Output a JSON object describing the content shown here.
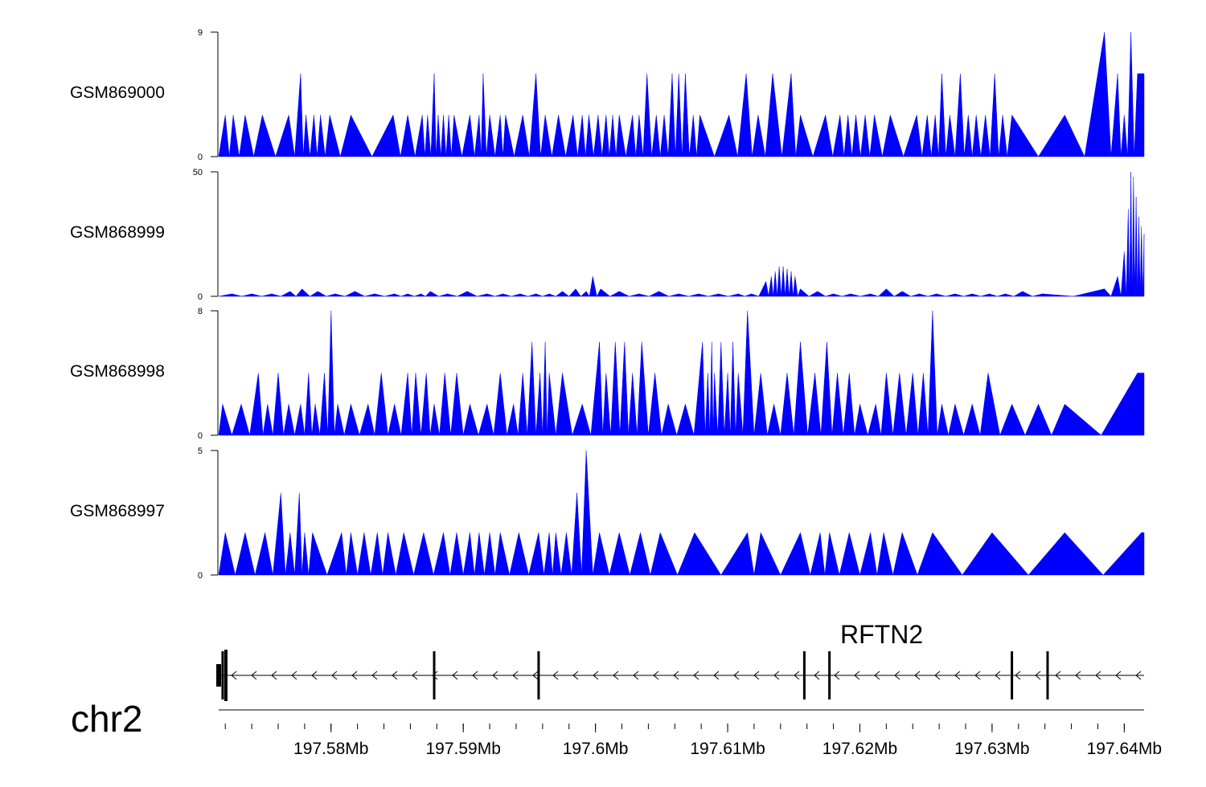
{
  "chart_data": {
    "type": "area",
    "chromosome": "chr2",
    "xlim": [
      197.5715,
      197.6415
    ],
    "xunit": "Mb",
    "xticks": [
      197.58,
      197.59,
      197.6,
      197.61,
      197.62,
      197.63,
      197.64
    ],
    "xtick_labels": [
      "197.58Mb",
      "197.59Mb",
      "197.6Mb",
      "197.61Mb",
      "197.62Mb",
      "197.63Mb",
      "197.64Mb"
    ],
    "fill_color": "#0000ff",
    "tracks": [
      {
        "name": "GSM869000",
        "ylim": [
          0,
          9
        ],
        "ytick_labels": [
          "9",
          "0"
        ],
        "peaks": [
          [
            197.572,
            3
          ],
          [
            197.5726,
            3
          ],
          [
            197.5735,
            3
          ],
          [
            197.5748,
            3
          ],
          [
            197.5768,
            3
          ],
          [
            197.5777,
            6
          ],
          [
            197.5781,
            3
          ],
          [
            197.5787,
            3
          ],
          [
            197.5792,
            3
          ],
          [
            197.5799,
            3
          ],
          [
            197.5815,
            3
          ],
          [
            197.5847,
            3
          ],
          [
            197.5858,
            3
          ],
          [
            197.5869,
            3
          ],
          [
            197.5873,
            3
          ],
          [
            197.5878,
            6
          ],
          [
            197.5881,
            3
          ],
          [
            197.5885,
            3
          ],
          [
            197.5889,
            3
          ],
          [
            197.5893,
            3
          ],
          [
            197.5905,
            3
          ],
          [
            197.5912,
            3
          ],
          [
            197.5915,
            6
          ],
          [
            197.592,
            3
          ],
          [
            197.5928,
            3
          ],
          [
            197.5932,
            3
          ],
          [
            197.5945,
            3
          ],
          [
            197.5955,
            6
          ],
          [
            197.5962,
            3
          ],
          [
            197.5972,
            3
          ],
          [
            197.5983,
            3
          ],
          [
            197.599,
            3
          ],
          [
            197.5995,
            3
          ],
          [
            197.6002,
            3
          ],
          [
            197.6008,
            3
          ],
          [
            197.6013,
            3
          ],
          [
            197.6018,
            3
          ],
          [
            197.6028,
            3
          ],
          [
            197.6033,
            3
          ],
          [
            197.6039,
            6
          ],
          [
            197.6046,
            3
          ],
          [
            197.6052,
            3
          ],
          [
            197.6058,
            6
          ],
          [
            197.6063,
            6
          ],
          [
            197.6068,
            6
          ],
          [
            197.6074,
            3
          ],
          [
            197.6079,
            3
          ],
          [
            197.6101,
            3
          ],
          [
            197.6114,
            6
          ],
          [
            197.6123,
            3
          ],
          [
            197.6134,
            6
          ],
          [
            197.6148,
            6
          ],
          [
            197.6155,
            3
          ],
          [
            197.6174,
            3
          ],
          [
            197.6185,
            3
          ],
          [
            197.6191,
            3
          ],
          [
            197.6197,
            3
          ],
          [
            197.6204,
            3
          ],
          [
            197.6211,
            3
          ],
          [
            197.6223,
            3
          ],
          [
            197.6243,
            3
          ],
          [
            197.6251,
            3
          ],
          [
            197.6257,
            3
          ],
          [
            197.6262,
            6
          ],
          [
            197.6268,
            3
          ],
          [
            197.6276,
            6
          ],
          [
            197.6282,
            3
          ],
          [
            197.6288,
            3
          ],
          [
            197.6295,
            3
          ],
          [
            197.6302,
            6
          ],
          [
            197.6308,
            3
          ],
          [
            197.6315,
            3
          ],
          [
            197.6355,
            3
          ],
          [
            197.6385,
            9
          ],
          [
            197.6395,
            6
          ],
          [
            197.64,
            3
          ],
          [
            197.6405,
            9
          ],
          [
            197.641,
            6
          ]
        ]
      },
      {
        "name": "GSM868999",
        "ylim": [
          0,
          50
        ],
        "ytick_labels": [
          "50",
          "0"
        ],
        "peaks": [
          [
            197.5725,
            1
          ],
          [
            197.574,
            1
          ],
          [
            197.5755,
            1
          ],
          [
            197.5769,
            2
          ],
          [
            197.5778,
            3
          ],
          [
            197.579,
            2
          ],
          [
            197.5803,
            1
          ],
          [
            197.5818,
            2
          ],
          [
            197.5833,
            1
          ],
          [
            197.5848,
            1
          ],
          [
            197.5858,
            1
          ],
          [
            197.5868,
            1
          ],
          [
            197.5875,
            2
          ],
          [
            197.5888,
            1
          ],
          [
            197.5903,
            2
          ],
          [
            197.5918,
            1
          ],
          [
            197.593,
            1
          ],
          [
            197.5943,
            1
          ],
          [
            197.5955,
            1
          ],
          [
            197.5965,
            1
          ],
          [
            197.5975,
            2
          ],
          [
            197.5985,
            3
          ],
          [
            197.5993,
            2
          ],
          [
            197.5998,
            8
          ],
          [
            197.6004,
            3
          ],
          [
            197.6018,
            2
          ],
          [
            197.6033,
            1
          ],
          [
            197.6048,
            2
          ],
          [
            197.6063,
            1
          ],
          [
            197.6078,
            1
          ],
          [
            197.6093,
            1
          ],
          [
            197.6108,
            1
          ],
          [
            197.6118,
            1
          ],
          [
            197.6129,
            6
          ],
          [
            197.6133,
            8
          ],
          [
            197.6136,
            10
          ],
          [
            197.6139,
            12
          ],
          [
            197.6142,
            12
          ],
          [
            197.6145,
            11
          ],
          [
            197.6148,
            10
          ],
          [
            197.6151,
            8
          ],
          [
            197.6155,
            3
          ],
          [
            197.6168,
            2
          ],
          [
            197.618,
            1
          ],
          [
            197.6193,
            1
          ],
          [
            197.6208,
            1
          ],
          [
            197.622,
            3
          ],
          [
            197.6232,
            2
          ],
          [
            197.6245,
            1
          ],
          [
            197.6258,
            1
          ],
          [
            197.6272,
            1
          ],
          [
            197.6285,
            1
          ],
          [
            197.6298,
            1
          ],
          [
            197.631,
            1
          ],
          [
            197.6323,
            2
          ],
          [
            197.6338,
            1
          ],
          [
            197.6385,
            3
          ],
          [
            197.6395,
            8
          ],
          [
            197.64,
            18
          ],
          [
            197.6403,
            35
          ],
          [
            197.6405,
            50
          ],
          [
            197.6407,
            48
          ],
          [
            197.6409,
            40
          ],
          [
            197.6411,
            32
          ],
          [
            197.6413,
            28
          ],
          [
            197.6415,
            25
          ]
        ]
      },
      {
        "name": "GSM868998",
        "ylim": [
          0,
          8
        ],
        "ytick_labels": [
          "8",
          "0"
        ],
        "peaks": [
          [
            197.5718,
            2
          ],
          [
            197.5732,
            2
          ],
          [
            197.5745,
            4
          ],
          [
            197.5752,
            2
          ],
          [
            197.576,
            4
          ],
          [
            197.5768,
            2
          ],
          [
            197.5777,
            2
          ],
          [
            197.5783,
            4
          ],
          [
            197.5788,
            2
          ],
          [
            197.5795,
            4
          ],
          [
            197.58,
            8
          ],
          [
            197.5805,
            2
          ],
          [
            197.5815,
            2
          ],
          [
            197.5828,
            2
          ],
          [
            197.5838,
            4
          ],
          [
            197.5848,
            2
          ],
          [
            197.5858,
            4
          ],
          [
            197.5864,
            4
          ],
          [
            197.5872,
            4
          ],
          [
            197.5878,
            2
          ],
          [
            197.5886,
            4
          ],
          [
            197.5895,
            4
          ],
          [
            197.5905,
            2
          ],
          [
            197.5918,
            2
          ],
          [
            197.5928,
            4
          ],
          [
            197.5938,
            2
          ],
          [
            197.5945,
            4
          ],
          [
            197.5952,
            6
          ],
          [
            197.5958,
            4
          ],
          [
            197.5962,
            6
          ],
          [
            197.5965,
            4
          ],
          [
            197.5975,
            4
          ],
          [
            197.599,
            2
          ],
          [
            197.6003,
            6
          ],
          [
            197.6008,
            4
          ],
          [
            197.6015,
            6
          ],
          [
            197.6022,
            6
          ],
          [
            197.6028,
            4
          ],
          [
            197.6035,
            6
          ],
          [
            197.6045,
            4
          ],
          [
            197.6055,
            2
          ],
          [
            197.6068,
            2
          ],
          [
            197.6081,
            6
          ],
          [
            197.6085,
            4
          ],
          [
            197.6088,
            6
          ],
          [
            197.609,
            4
          ],
          [
            197.6095,
            6
          ],
          [
            197.61,
            4
          ],
          [
            197.6104,
            6
          ],
          [
            197.6108,
            4
          ],
          [
            197.6115,
            8
          ],
          [
            197.6125,
            4
          ],
          [
            197.6135,
            2
          ],
          [
            197.6145,
            4
          ],
          [
            197.6155,
            6
          ],
          [
            197.6166,
            4
          ],
          [
            197.6175,
            6
          ],
          [
            197.6183,
            4
          ],
          [
            197.6192,
            4
          ],
          [
            197.62,
            2
          ],
          [
            197.6212,
            2
          ],
          [
            197.622,
            4
          ],
          [
            197.623,
            4
          ],
          [
            197.624,
            4
          ],
          [
            197.6248,
            4
          ],
          [
            197.6255,
            8
          ],
          [
            197.6262,
            2
          ],
          [
            197.6272,
            2
          ],
          [
            197.6285,
            2
          ],
          [
            197.6297,
            4
          ],
          [
            197.6315,
            2
          ],
          [
            197.6335,
            2
          ],
          [
            197.6355,
            2
          ],
          [
            197.641,
            4
          ]
        ]
      },
      {
        "name": "GSM868997",
        "ylim": [
          0,
          5
        ],
        "ytick_labels": [
          "5",
          "0"
        ],
        "peaks": [
          [
            197.572,
            1.7
          ],
          [
            197.5735,
            1.7
          ],
          [
            197.575,
            1.7
          ],
          [
            197.5762,
            3.3
          ],
          [
            197.5769,
            1.7
          ],
          [
            197.5776,
            3.3
          ],
          [
            197.578,
            1.7
          ],
          [
            197.5786,
            1.7
          ],
          [
            197.5808,
            1.7
          ],
          [
            197.5815,
            1.7
          ],
          [
            197.5825,
            1.7
          ],
          [
            197.5835,
            1.7
          ],
          [
            197.5843,
            1.7
          ],
          [
            197.5855,
            1.7
          ],
          [
            197.587,
            1.7
          ],
          [
            197.5885,
            1.7
          ],
          [
            197.5895,
            1.7
          ],
          [
            197.5905,
            1.7
          ],
          [
            197.5912,
            1.7
          ],
          [
            197.592,
            1.7
          ],
          [
            197.5928,
            1.7
          ],
          [
            197.5942,
            1.7
          ],
          [
            197.5957,
            1.7
          ],
          [
            197.5965,
            1.7
          ],
          [
            197.597,
            1.7
          ],
          [
            197.5978,
            1.7
          ],
          [
            197.5986,
            3.3
          ],
          [
            197.5993,
            5
          ],
          [
            197.6003,
            1.7
          ],
          [
            197.6018,
            1.7
          ],
          [
            197.6034,
            1.7
          ],
          [
            197.6049,
            1.7
          ],
          [
            197.6075,
            1.7
          ],
          [
            197.6115,
            1.7
          ],
          [
            197.6125,
            1.7
          ],
          [
            197.6155,
            1.7
          ],
          [
            197.617,
            1.7
          ],
          [
            197.6177,
            1.7
          ],
          [
            197.6192,
            1.7
          ],
          [
            197.6208,
            1.7
          ],
          [
            197.6218,
            1.7
          ],
          [
            197.6232,
            1.7
          ],
          [
            197.6255,
            1.7
          ],
          [
            197.63,
            1.7
          ],
          [
            197.6355,
            1.7
          ],
          [
            197.6413,
            1.7
          ]
        ]
      }
    ],
    "gene": {
      "name": "RFTN2",
      "strand": "-",
      "start": 197.5715,
      "end": 197.6415,
      "exons": [
        197.5715,
        197.5718,
        197.5878,
        197.5957,
        197.6158,
        197.6177,
        197.6315,
        197.6342
      ]
    }
  }
}
